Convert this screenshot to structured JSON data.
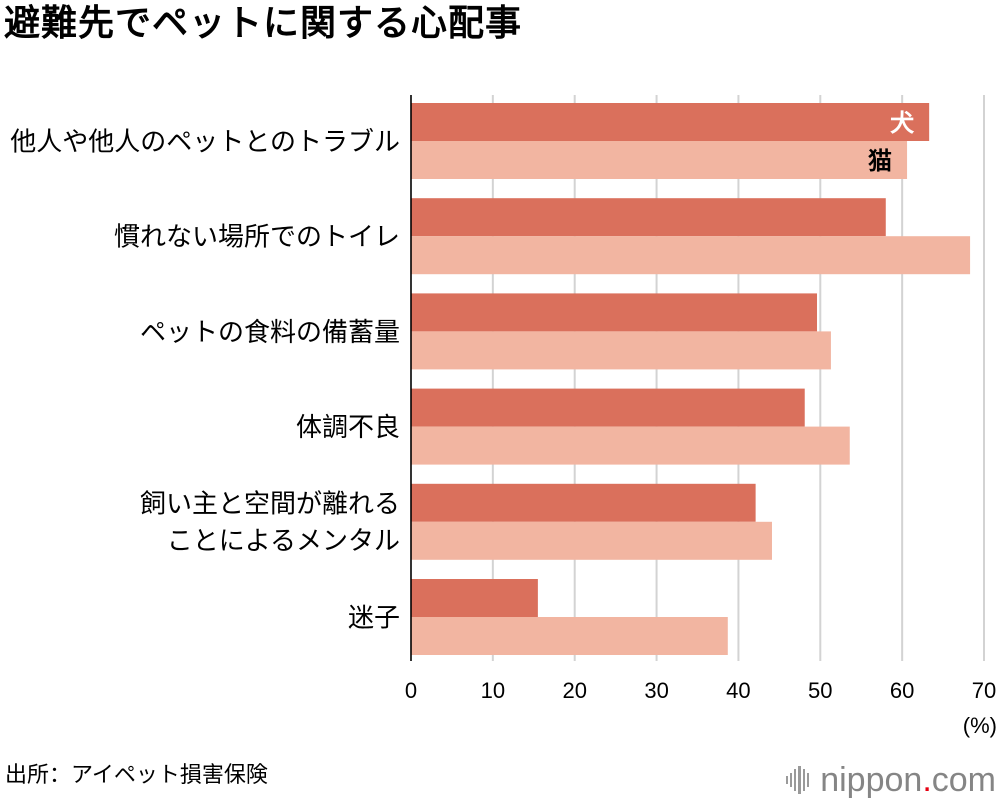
{
  "source": "出所：アイペット損害保険",
  "logo": {
    "name": "nippon",
    "dot": ".",
    "tld": "com",
    "icon": "soundwave-icon"
  },
  "colors": {
    "dog": "#da705c",
    "cat": "#f2b5a1",
    "grid": "#d3d3d3",
    "axis": "#000000",
    "logo_text": "#858585",
    "logo_dot": "#e60012"
  },
  "chart_data": {
    "type": "bar",
    "orientation": "horizontal",
    "title": "避難先でペットに関する心配事",
    "categories": [
      "他人や他人のペットとのトラブル",
      "慣れない場所でのトイレ",
      "ペットの食料の備蓄量",
      "体調不良",
      "飼い主と空間が離れる\nことによるメンタル",
      "迷子"
    ],
    "series": [
      {
        "name": "犬",
        "values": [
          63.3,
          58.0,
          49.6,
          48.1,
          42.1,
          15.5
        ],
        "color": "#da705c",
        "label_color": "#ffffff"
      },
      {
        "name": "猫",
        "values": [
          60.6,
          68.3,
          51.3,
          53.6,
          44.1,
          38.7
        ],
        "color": "#f2b5a1",
        "label_color": "#000000"
      }
    ],
    "xlabel": "(%)",
    "xlim": [
      0,
      70
    ],
    "xticks": [
      0,
      10,
      20,
      30,
      40,
      50,
      60,
      70
    ],
    "grid": true,
    "legend": "inside-bars"
  }
}
